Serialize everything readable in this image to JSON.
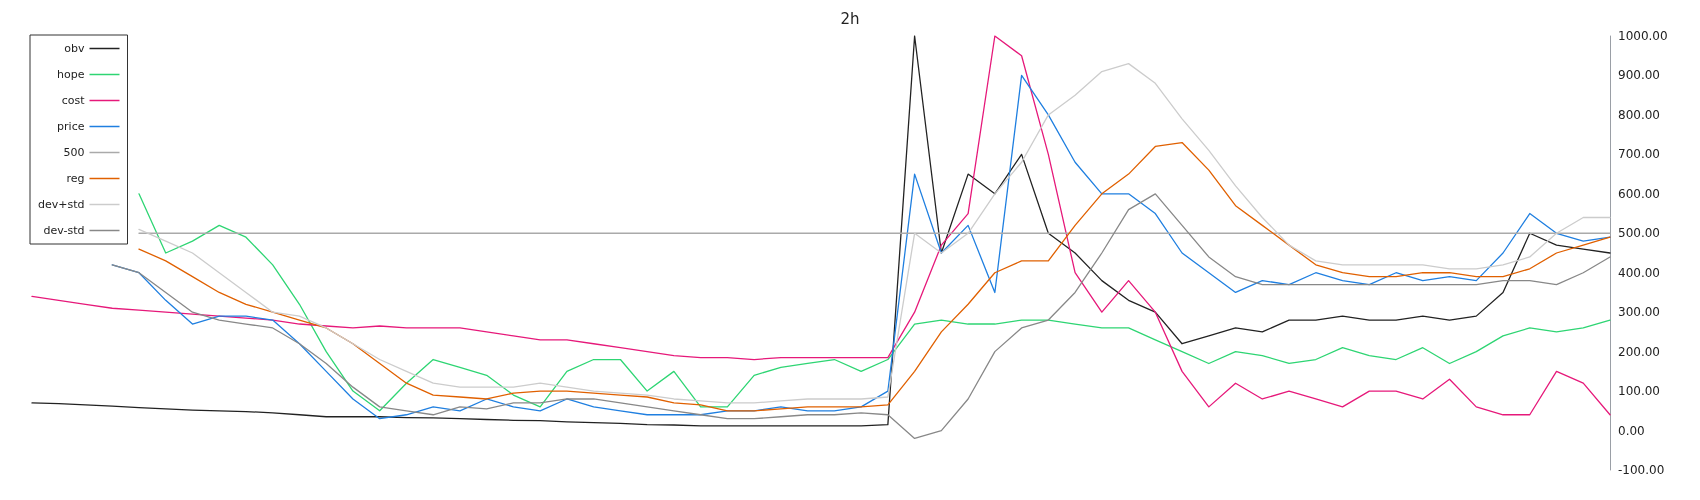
{
  "chart_data": {
    "type": "line",
    "title": "2h",
    "categories": [
      null,
      null,
      null,
      null,
      null,
      null,
      null,
      null,
      null,
      null,
      null,
      null,
      null,
      null,
      null,
      null,
      null,
      null,
      null,
      null,
      null,
      null,
      null,
      null,
      null,
      null,
      null,
      null,
      null,
      null,
      null,
      null,
      null,
      null,
      null,
      null,
      null,
      null,
      null,
      null,
      null,
      null,
      null,
      null,
      null,
      null,
      null,
      null,
      null,
      null,
      null,
      null,
      null,
      null,
      null,
      null,
      null,
      null,
      null,
      null
    ],
    "series": [
      {
        "name": "obv",
        "color": "#222222",
        "values": [
          70,
          68,
          65,
          62,
          58,
          55,
          52,
          50,
          48,
          45,
          40,
          35,
          35,
          35,
          33,
          32,
          30,
          28,
          26,
          25,
          22,
          20,
          18,
          15,
          14,
          12,
          12,
          12,
          12,
          12,
          12,
          12,
          15,
          1000,
          450,
          650,
          600,
          700,
          500,
          450,
          380,
          330,
          300,
          220,
          240,
          260,
          250,
          280,
          280,
          290,
          280,
          280,
          290,
          280,
          290,
          350,
          500,
          470,
          460,
          450
        ]
      },
      {
        "name": "hope",
        "color": "#2ed573",
        "values": [
          null,
          null,
          null,
          null,
          600,
          450,
          480,
          520,
          490,
          420,
          320,
          200,
          100,
          50,
          120,
          180,
          160,
          140,
          90,
          60,
          150,
          180,
          180,
          100,
          150,
          60,
          60,
          140,
          160,
          170,
          180,
          150,
          180,
          270,
          280,
          270,
          270,
          280,
          280,
          270,
          260,
          260,
          230,
          200,
          170,
          200,
          190,
          170,
          180,
          210,
          190,
          180,
          210,
          170,
          200,
          240,
          260,
          250,
          260,
          280
        ]
      },
      {
        "name": "cost",
        "color": "#e6197a",
        "values": [
          340,
          330,
          320,
          310,
          305,
          300,
          295,
          290,
          285,
          280,
          270,
          265,
          260,
          265,
          260,
          260,
          260,
          250,
          240,
          230,
          230,
          220,
          210,
          200,
          190,
          185,
          185,
          180,
          185,
          185,
          185,
          185,
          185,
          300,
          470,
          550,
          1000,
          950,
          700,
          400,
          300,
          380,
          300,
          150,
          60,
          120,
          80,
          100,
          80,
          60,
          100,
          100,
          80,
          130,
          60,
          40,
          40,
          150,
          120,
          40
        ]
      },
      {
        "name": "price",
        "color": "#1f7fe0",
        "values": [
          null,
          null,
          null,
          420,
          400,
          330,
          270,
          290,
          290,
          280,
          220,
          150,
          80,
          30,
          40,
          60,
          50,
          80,
          60,
          50,
          80,
          60,
          50,
          40,
          40,
          40,
          50,
          50,
          60,
          50,
          50,
          60,
          100,
          650,
          450,
          520,
          350,
          900,
          800,
          680,
          600,
          600,
          550,
          450,
          400,
          350,
          380,
          370,
          400,
          380,
          370,
          400,
          380,
          390,
          380,
          450,
          550,
          500,
          480,
          490
        ]
      },
      {
        "name": "500",
        "color": "#aaaaaa",
        "values": [
          null,
          null,
          null,
          null,
          500,
          500,
          500,
          500,
          500,
          500,
          500,
          500,
          500,
          500,
          500,
          500,
          500,
          500,
          500,
          500,
          500,
          500,
          500,
          500,
          500,
          500,
          500,
          500,
          500,
          500,
          500,
          500,
          500,
          500,
          500,
          500,
          500,
          500,
          500,
          500,
          500,
          500,
          500,
          500,
          500,
          500,
          500,
          500,
          500,
          500,
          500,
          500,
          500,
          500,
          500,
          500,
          500,
          500,
          500,
          500
        ]
      },
      {
        "name": "reg",
        "color": "#e06000",
        "values": [
          null,
          null,
          null,
          null,
          460,
          430,
          390,
          350,
          320,
          300,
          280,
          260,
          220,
          170,
          120,
          90,
          85,
          80,
          95,
          100,
          100,
          95,
          90,
          85,
          70,
          65,
          50,
          50,
          55,
          60,
          60,
          60,
          65,
          150,
          250,
          320,
          400,
          430,
          430,
          520,
          600,
          650,
          720,
          730,
          660,
          570,
          520,
          470,
          420,
          400,
          390,
          390,
          400,
          400,
          390,
          390,
          410,
          450,
          470,
          490
        ]
      },
      {
        "name": "dev+std",
        "color": "#cccccc",
        "values": [
          null,
          null,
          null,
          null,
          510,
          480,
          450,
          400,
          350,
          300,
          290,
          260,
          220,
          180,
          150,
          120,
          110,
          110,
          110,
          120,
          110,
          100,
          95,
          90,
          80,
          75,
          70,
          70,
          75,
          80,
          80,
          80,
          85,
          500,
          450,
          500,
          600,
          680,
          800,
          850,
          910,
          930,
          880,
          790,
          710,
          620,
          540,
          470,
          430,
          420,
          420,
          420,
          420,
          410,
          410,
          420,
          440,
          500,
          540,
          540
        ]
      },
      {
        "name": "dev-std",
        "color": "#888888",
        "values": [
          null,
          null,
          null,
          420,
          400,
          350,
          300,
          280,
          270,
          260,
          220,
          170,
          110,
          60,
          50,
          40,
          60,
          55,
          70,
          70,
          80,
          80,
          70,
          60,
          50,
          40,
          30,
          30,
          35,
          40,
          40,
          45,
          40,
          -20,
          0,
          80,
          200,
          260,
          280,
          350,
          450,
          560,
          600,
          520,
          440,
          390,
          370,
          370,
          370,
          370,
          370,
          370,
          370,
          370,
          370,
          380,
          380,
          370,
          400,
          440
        ]
      }
    ],
    "ylim": [
      -100,
      1000
    ],
    "yticks": [
      {
        "value": -100,
        "label": "-100.00"
      },
      {
        "value": 0,
        "label": "0.00"
      },
      {
        "value": 100,
        "label": "100.00"
      },
      {
        "value": 200,
        "label": "200.00"
      },
      {
        "value": 300,
        "label": "300.00"
      },
      {
        "value": 400,
        "label": "400.00"
      },
      {
        "value": 500,
        "label": "500.00"
      },
      {
        "value": 600,
        "label": "600.00"
      },
      {
        "value": 700,
        "label": "700.00"
      },
      {
        "value": 800,
        "label": "800.00"
      },
      {
        "value": 900,
        "label": "900.00"
      },
      {
        "value": 1000,
        "label": "1000.00"
      }
    ],
    "grid": false,
    "legend": "top left",
    "marker": "none",
    "line_style": "solid"
  }
}
